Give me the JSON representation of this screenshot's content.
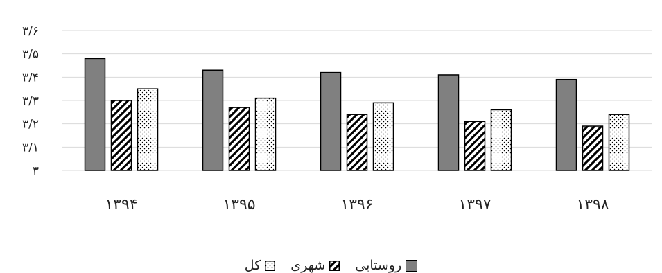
{
  "chart_data": {
    "type": "bar",
    "categories": [
      "۱۳۹۴",
      "۱۳۹۵",
      "۱۳۹۶",
      "۱۳۹۷",
      "۱۳۹۸"
    ],
    "series": [
      {
        "name": "روستایی",
        "values": [
          3.48,
          3.43,
          3.42,
          3.41,
          3.39
        ],
        "fill": "solid",
        "color": "#808080"
      },
      {
        "name": "شهری",
        "values": [
          3.3,
          3.27,
          3.24,
          3.21,
          3.19
        ],
        "fill": "diagonal-hatch",
        "color": "#000000"
      },
      {
        "name": "کل",
        "values": [
          3.35,
          3.31,
          3.29,
          3.26,
          3.24
        ],
        "fill": "dotted",
        "color": "#000000"
      }
    ],
    "ylim": [
      3.0,
      3.6
    ],
    "yticks": [
      3.0,
      3.1,
      3.2,
      3.3,
      3.4,
      3.5,
      3.6
    ],
    "ytick_labels": [
      "۳",
      "۳/۱",
      "۳/۲",
      "۳/۳",
      "۳/۴",
      "۳/۵",
      "۳/۶"
    ],
    "grid": true,
    "legend_position": "bottom",
    "title": "",
    "xlabel": "",
    "ylabel": ""
  }
}
